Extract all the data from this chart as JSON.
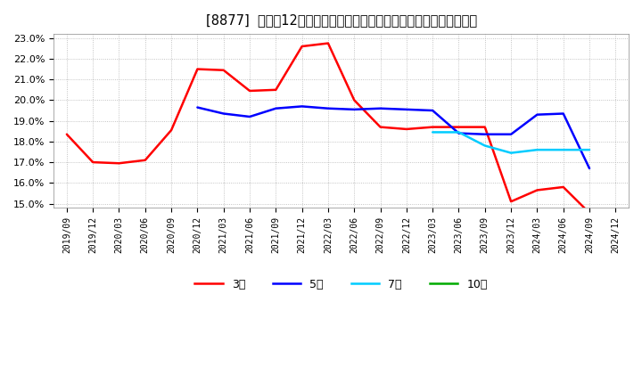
{
  "title": "[8877]  売上高12か月移動合計の対前年同期増減率の標準偏差の推移",
  "ylim": [
    0.148,
    0.232
  ],
  "yticks": [
    0.15,
    0.16,
    0.17,
    0.18,
    0.19,
    0.2,
    0.21,
    0.22,
    0.23
  ],
  "bg_color": "#ffffff",
  "grid_color": "#aaaaaa",
  "series": {
    "3年": {
      "color": "#ff0000",
      "data": [
        [
          "2019/09",
          0.1835
        ],
        [
          "2019/12",
          0.17
        ],
        [
          "2020/03",
          0.1695
        ],
        [
          "2020/06",
          0.171
        ],
        [
          "2020/09",
          0.1855
        ],
        [
          "2020/12",
          0.215
        ],
        [
          "2021/03",
          0.2145
        ],
        [
          "2021/06",
          0.2045
        ],
        [
          "2021/09",
          0.205
        ],
        [
          "2021/12",
          0.226
        ],
        [
          "2022/03",
          0.2275
        ],
        [
          "2022/06",
          0.2
        ],
        [
          "2022/09",
          0.187
        ],
        [
          "2022/12",
          0.186
        ],
        [
          "2023/03",
          0.187
        ],
        [
          "2023/06",
          0.187
        ],
        [
          "2023/09",
          0.187
        ],
        [
          "2023/12",
          0.151
        ],
        [
          "2024/03",
          0.1565
        ],
        [
          "2024/06",
          0.158
        ],
        [
          "2024/09",
          0.1455
        ]
      ]
    },
    "5年": {
      "color": "#0000ff",
      "data": [
        [
          "2020/12",
          0.1965
        ],
        [
          "2021/03",
          0.1935
        ],
        [
          "2021/06",
          0.192
        ],
        [
          "2021/09",
          0.196
        ],
        [
          "2021/12",
          0.197
        ],
        [
          "2022/03",
          0.196
        ],
        [
          "2022/06",
          0.1955
        ],
        [
          "2022/09",
          0.196
        ],
        [
          "2022/12",
          0.1955
        ],
        [
          "2023/03",
          0.195
        ],
        [
          "2023/06",
          0.184
        ],
        [
          "2023/09",
          0.1835
        ],
        [
          "2023/12",
          0.1835
        ],
        [
          "2024/03",
          0.193
        ],
        [
          "2024/06",
          0.1935
        ],
        [
          "2024/09",
          0.167
        ]
      ]
    },
    "7年": {
      "color": "#00ccff",
      "data": [
        [
          "2023/03",
          0.1845
        ],
        [
          "2023/06",
          0.1845
        ],
        [
          "2023/09",
          0.178
        ],
        [
          "2023/12",
          0.1745
        ],
        [
          "2024/03",
          0.176
        ],
        [
          "2024/06",
          0.176
        ],
        [
          "2024/09",
          0.176
        ]
      ]
    },
    "10年": {
      "color": "#00aa00",
      "data": []
    }
  },
  "legend_order": [
    "3年",
    "5年",
    "7年",
    "10年"
  ],
  "xtick_labels": [
    "2019/09",
    "2019/12",
    "2020/03",
    "2020/06",
    "2020/09",
    "2020/12",
    "2021/03",
    "2021/06",
    "2021/09",
    "2021/12",
    "2022/03",
    "2022/06",
    "2022/09",
    "2022/12",
    "2023/03",
    "2023/06",
    "2023/09",
    "2023/12",
    "2024/03",
    "2024/06",
    "2024/09",
    "2024/12"
  ]
}
